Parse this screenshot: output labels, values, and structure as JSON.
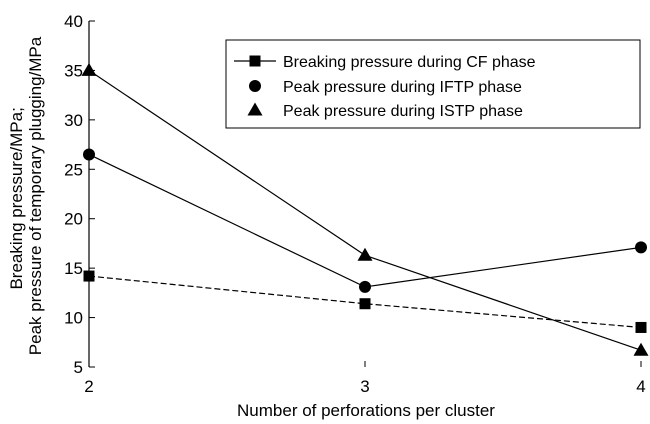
{
  "chart_data": {
    "type": "line",
    "title": "",
    "xlabel": "Number of perforations per cluster",
    "ylabel_lines": [
      "Breaking pressure/MPa;",
      "Peak pressure of temporary plugging/MPa"
    ],
    "x": [
      2,
      3,
      4
    ],
    "x_ticks": [
      "2",
      "3",
      "4"
    ],
    "ylim": [
      5,
      40
    ],
    "y_ticks": [
      "5",
      "10",
      "15",
      "20",
      "25",
      "30",
      "35",
      "40"
    ],
    "grid": false,
    "legend_position": "top-right",
    "series": [
      {
        "name": "Breaking pressure during CF phase",
        "values": [
          14.2,
          11.4,
          9.0
        ],
        "marker": "square",
        "line": "dashed",
        "color": "#000000"
      },
      {
        "name": "Peak pressure during IFTP phase",
        "values": [
          26.5,
          13.1,
          17.1
        ],
        "marker": "circle",
        "line": "solid",
        "color": "#000000"
      },
      {
        "name": "Peak pressure during ISTP phase",
        "values": [
          35.0,
          16.3,
          6.7
        ],
        "marker": "triangle",
        "line": "solid",
        "color": "#000000"
      }
    ]
  }
}
